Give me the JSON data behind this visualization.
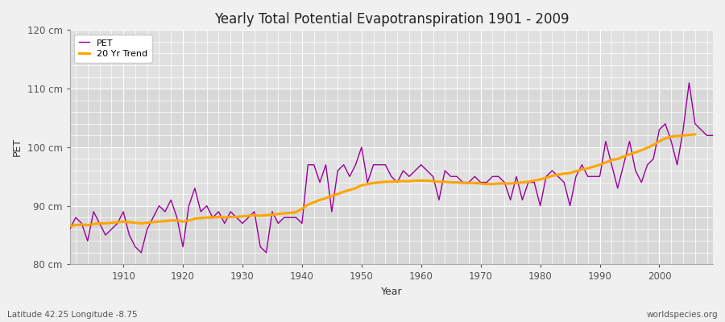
{
  "title": "Yearly Total Potential Evapotranspiration 1901 - 2009",
  "xlabel": "Year",
  "ylabel": "PET",
  "footnote_left": "Latitude 42.25 Longitude -8.75",
  "footnote_right": "worldspecies.org",
  "bg_color": "#f0f0f0",
  "plot_bg_color": "#e0e0e0",
  "grid_color": "#ffffff",
  "pet_color": "#990099",
  "trend_color": "#ffa500",
  "ylim": [
    80,
    120
  ],
  "yticks": [
    80,
    90,
    100,
    110,
    120
  ],
  "ytick_labels": [
    "80 cm",
    "90 cm",
    "100 cm",
    "110 cm",
    "120 cm"
  ],
  "xlim": [
    1901,
    2009
  ],
  "xticks": [
    1910,
    1920,
    1930,
    1940,
    1950,
    1960,
    1970,
    1980,
    1990,
    2000
  ],
  "years": [
    1901,
    1902,
    1903,
    1904,
    1905,
    1906,
    1907,
    1908,
    1909,
    1910,
    1911,
    1912,
    1913,
    1914,
    1915,
    1916,
    1917,
    1918,
    1919,
    1920,
    1921,
    1922,
    1923,
    1924,
    1925,
    1926,
    1927,
    1928,
    1929,
    1930,
    1931,
    1932,
    1933,
    1934,
    1935,
    1936,
    1937,
    1938,
    1939,
    1940,
    1941,
    1942,
    1943,
    1944,
    1945,
    1946,
    1947,
    1948,
    1949,
    1950,
    1951,
    1952,
    1953,
    1954,
    1955,
    1956,
    1957,
    1958,
    1959,
    1960,
    1961,
    1962,
    1963,
    1964,
    1965,
    1966,
    1967,
    1968,
    1969,
    1970,
    1971,
    1972,
    1973,
    1974,
    1975,
    1976,
    1977,
    1978,
    1979,
    1980,
    1981,
    1982,
    1983,
    1984,
    1985,
    1986,
    1987,
    1988,
    1989,
    1990,
    1991,
    1992,
    1993,
    1994,
    1995,
    1996,
    1997,
    1998,
    1999,
    2000,
    2001,
    2002,
    2003,
    2004,
    2005,
    2006,
    2007,
    2008,
    2009
  ],
  "pet": [
    86,
    88,
    87,
    84,
    89,
    87,
    85,
    86,
    87,
    89,
    85,
    83,
    82,
    86,
    88,
    90,
    89,
    91,
    88,
    83,
    90,
    93,
    89,
    90,
    88,
    89,
    87,
    89,
    88,
    87,
    88,
    89,
    83,
    82,
    89,
    87,
    88,
    88,
    88,
    87,
    97,
    97,
    94,
    97,
    89,
    96,
    97,
    95,
    97,
    100,
    94,
    97,
    97,
    97,
    95,
    94,
    96,
    95,
    96,
    97,
    96,
    95,
    91,
    96,
    95,
    95,
    94,
    94,
    95,
    94,
    94,
    95,
    95,
    94,
    91,
    95,
    91,
    94,
    94,
    90,
    95,
    96,
    95,
    94,
    90,
    95,
    97,
    95,
    95,
    95,
    101,
    97,
    93,
    97,
    101,
    96,
    94,
    97,
    98,
    103,
    104,
    101,
    97,
    103,
    111,
    104,
    103,
    102,
    102
  ],
  "trend": [
    86.5,
    86.7,
    86.8,
    86.7,
    86.9,
    87.0,
    87.0,
    87.1,
    87.2,
    87.3,
    87.2,
    87.1,
    87.0,
    87.1,
    87.2,
    87.3,
    87.4,
    87.5,
    87.5,
    87.3,
    87.5,
    87.8,
    87.9,
    88.0,
    88.0,
    88.1,
    88.0,
    88.1,
    88.1,
    88.2,
    88.3,
    88.4,
    88.3,
    88.4,
    88.5,
    88.6,
    88.7,
    88.8,
    88.9,
    89.5,
    90.2,
    90.6,
    91.0,
    91.3,
    91.7,
    92.0,
    92.4,
    92.7,
    93.0,
    93.5,
    93.7,
    93.9,
    94.0,
    94.1,
    94.1,
    94.2,
    94.2,
    94.2,
    94.3,
    94.3,
    94.3,
    94.2,
    94.1,
    94.1,
    94.0,
    94.0,
    93.9,
    93.9,
    93.9,
    93.8,
    93.7,
    93.7,
    93.8,
    93.8,
    93.8,
    93.9,
    94.0,
    94.1,
    94.3,
    94.5,
    94.8,
    95.1,
    95.3,
    95.5,
    95.6,
    95.9,
    96.2,
    96.4,
    96.7,
    97.0,
    97.4,
    97.8,
    98.0,
    98.4,
    98.8,
    99.1,
    99.5,
    99.9,
    100.4,
    101.0,
    101.5,
    101.8,
    101.9,
    102.0,
    102.1,
    102.2,
    null,
    null,
    null
  ]
}
